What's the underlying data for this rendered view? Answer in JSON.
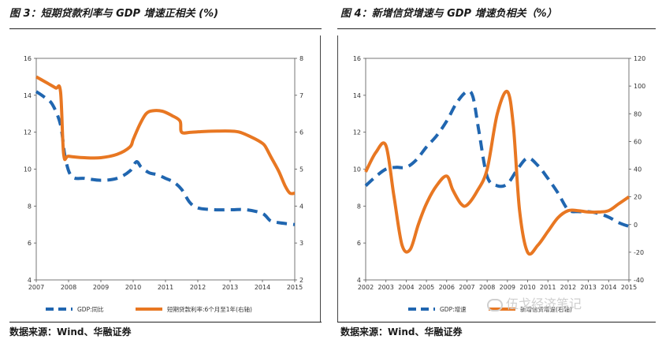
{
  "colors": {
    "gdp": "#2066b0",
    "rate": "#e87722",
    "axis": "#555555"
  },
  "watermark": "伍戈经济笔记",
  "chart_data": [
    {
      "type": "line",
      "title": "图 3：短期贷款利率与 GDP 增速正相关 (%)",
      "source": "数据来源：Wind、华融证券",
      "x_ticks": [
        "2007",
        "2008",
        "2009",
        "2010",
        "2011",
        "2012",
        "2013",
        "2014",
        "2015"
      ],
      "xlim": [
        2007,
        2015
      ],
      "y_left": {
        "ticks": [
          "4",
          "6",
          "8",
          "10",
          "12",
          "14",
          "16"
        ],
        "lim": [
          4,
          16
        ]
      },
      "y_right": {
        "ticks": [
          "2",
          "3",
          "4",
          "5",
          "6",
          "7",
          "8"
        ],
        "lim": [
          2,
          8
        ]
      },
      "series": [
        {
          "name": "GDP:同比",
          "axis": "left",
          "style": "dashed",
          "color": "#2066b0",
          "points": [
            [
              2007.0,
              14.2
            ],
            [
              2007.25,
              13.9
            ],
            [
              2007.5,
              13.5
            ],
            [
              2007.75,
              12.4
            ],
            [
              2007.9,
              10.6
            ],
            [
              2008.1,
              9.6
            ],
            [
              2008.5,
              9.5
            ],
            [
              2009.0,
              9.4
            ],
            [
              2009.5,
              9.5
            ],
            [
              2009.9,
              9.9
            ],
            [
              2010.1,
              10.4
            ],
            [
              2010.25,
              10.1
            ],
            [
              2010.5,
              9.8
            ],
            [
              2010.75,
              9.7
            ],
            [
              2011.0,
              9.5
            ],
            [
              2011.25,
              9.3
            ],
            [
              2011.5,
              8.9
            ],
            [
              2011.75,
              8.2
            ],
            [
              2012.0,
              7.9
            ],
            [
              2012.5,
              7.8
            ],
            [
              2013.0,
              7.8
            ],
            [
              2013.5,
              7.8
            ],
            [
              2014.0,
              7.6
            ],
            [
              2014.25,
              7.2
            ],
            [
              2014.5,
              7.1
            ],
            [
              2015.0,
              7.0
            ]
          ]
        },
        {
          "name": "短期贷款利率:6个月至1年(右轴)",
          "axis": "right",
          "style": "solid",
          "color": "#e87722",
          "points": [
            [
              2007.0,
              7.5
            ],
            [
              2007.3,
              7.35
            ],
            [
              2007.6,
              7.2
            ],
            [
              2007.75,
              7.1
            ],
            [
              2007.85,
              5.4
            ],
            [
              2008.0,
              5.35
            ],
            [
              2008.5,
              5.31
            ],
            [
              2009.0,
              5.31
            ],
            [
              2009.5,
              5.4
            ],
            [
              2009.9,
              5.6
            ],
            [
              2010.0,
              5.8
            ],
            [
              2010.2,
              6.2
            ],
            [
              2010.4,
              6.5
            ],
            [
              2010.6,
              6.58
            ],
            [
              2010.9,
              6.57
            ],
            [
              2011.2,
              6.45
            ],
            [
              2011.45,
              6.3
            ],
            [
              2011.5,
              6.0
            ],
            [
              2011.8,
              6.0
            ],
            [
              2012.2,
              6.02
            ],
            [
              2012.6,
              6.03
            ],
            [
              2013.0,
              6.03
            ],
            [
              2013.3,
              6.0
            ],
            [
              2013.7,
              5.85
            ],
            [
              2014.0,
              5.7
            ],
            [
              2014.1,
              5.6
            ],
            [
              2014.25,
              5.35
            ],
            [
              2014.5,
              4.95
            ],
            [
              2014.7,
              4.55
            ],
            [
              2014.85,
              4.35
            ],
            [
              2015.0,
              4.35
            ]
          ]
        }
      ]
    },
    {
      "type": "line",
      "title": "图 4：新增信贷增速与 GDP 增速负相关（%）",
      "source": "数据来源：Wind、华融证券",
      "x_ticks": [
        "2002",
        "2003",
        "2004",
        "2005",
        "2006",
        "2007",
        "2008",
        "2009",
        "2010",
        "2011",
        "2012",
        "2013",
        "2014",
        "2015"
      ],
      "xlim": [
        2002,
        2015
      ],
      "y_left": {
        "ticks": [
          "4",
          "6",
          "8",
          "10",
          "12",
          "14",
          "16"
        ],
        "lim": [
          4,
          16
        ]
      },
      "y_right": {
        "ticks": [
          "-40",
          "-20",
          "0",
          "20",
          "40",
          "60",
          "80",
          "100",
          "120"
        ],
        "lim": [
          -40,
          120
        ]
      },
      "series": [
        {
          "name": "GDP:增速",
          "axis": "left",
          "style": "dashed",
          "color": "#2066b0",
          "points": [
            [
              2002.0,
              9.1
            ],
            [
              2002.5,
              9.6
            ],
            [
              2003.0,
              10.0
            ],
            [
              2003.5,
              10.1
            ],
            [
              2004.0,
              10.1
            ],
            [
              2004.5,
              10.5
            ],
            [
              2005.0,
              11.2
            ],
            [
              2005.5,
              11.8
            ],
            [
              2006.0,
              12.6
            ],
            [
              2006.5,
              13.6
            ],
            [
              2007.0,
              14.2
            ],
            [
              2007.3,
              13.9
            ],
            [
              2007.6,
              12.0
            ],
            [
              2008.0,
              9.6
            ],
            [
              2008.5,
              9.1
            ],
            [
              2009.0,
              9.2
            ],
            [
              2009.5,
              10.0
            ],
            [
              2010.0,
              10.6
            ],
            [
              2010.5,
              10.2
            ],
            [
              2011.0,
              9.5
            ],
            [
              2011.5,
              8.7
            ],
            [
              2012.0,
              7.8
            ],
            [
              2012.5,
              7.7
            ],
            [
              2013.0,
              7.7
            ],
            [
              2013.5,
              7.6
            ],
            [
              2014.0,
              7.4
            ],
            [
              2014.5,
              7.1
            ],
            [
              2015.0,
              6.9
            ]
          ]
        },
        {
          "name": "新增信贷增速(右轴)",
          "axis": "right",
          "style": "solid",
          "color": "#e87722",
          "points": [
            [
              2002.0,
              38
            ],
            [
              2002.5,
              52
            ],
            [
              2003.0,
              57
            ],
            [
              2003.4,
              20
            ],
            [
              2003.8,
              -15
            ],
            [
              2004.2,
              -18
            ],
            [
              2004.6,
              0
            ],
            [
              2005.0,
              15
            ],
            [
              2005.5,
              28
            ],
            [
              2006.0,
              35
            ],
            [
              2006.3,
              25
            ],
            [
              2006.7,
              15
            ],
            [
              2007.0,
              14
            ],
            [
              2007.5,
              24
            ],
            [
              2008.0,
              40
            ],
            [
              2008.5,
              80
            ],
            [
              2009.0,
              96
            ],
            [
              2009.3,
              70
            ],
            [
              2009.6,
              10
            ],
            [
              2010.0,
              -20
            ],
            [
              2010.5,
              -15
            ],
            [
              2011.0,
              -5
            ],
            [
              2011.5,
              5
            ],
            [
              2012.0,
              10
            ],
            [
              2012.5,
              10
            ],
            [
              2013.0,
              9
            ],
            [
              2013.5,
              9
            ],
            [
              2014.0,
              10
            ],
            [
              2014.5,
              15
            ],
            [
              2015.0,
              20
            ]
          ]
        }
      ]
    }
  ]
}
